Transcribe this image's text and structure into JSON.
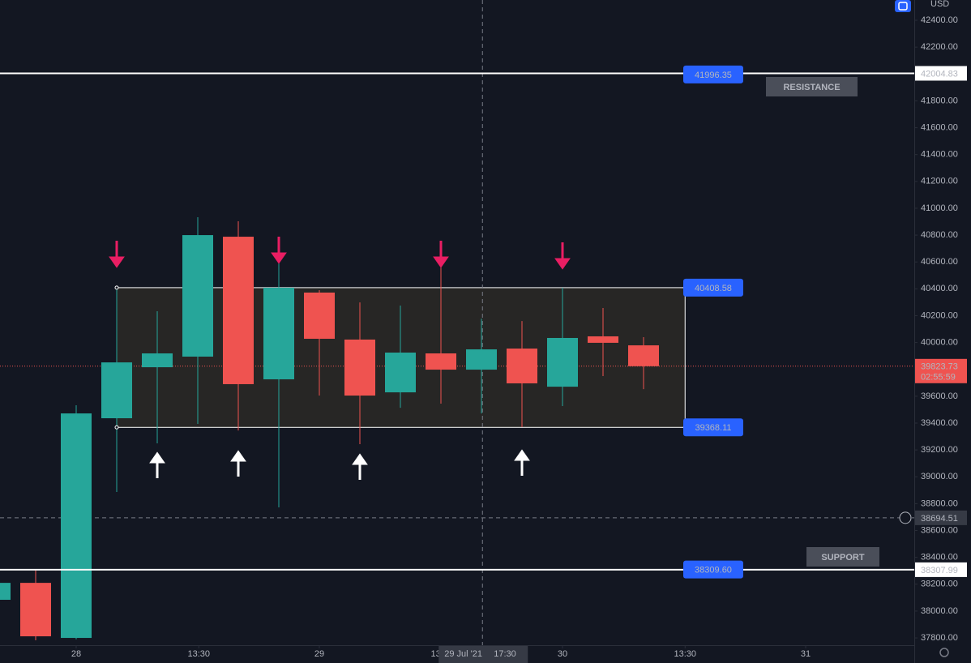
{
  "chart_data": {
    "type": "candlestick",
    "currency": "USD",
    "x": [
      -8,
      -4,
      0,
      4,
      8,
      12,
      16,
      20,
      24,
      28,
      32,
      36,
      40,
      44,
      48,
      52,
      56
    ],
    "open": [
      38084,
      38210,
      37800,
      39436,
      39816,
      39895,
      40788,
      39726,
      40372,
      40022,
      39629,
      39919,
      39798,
      39955,
      39671,
      40046,
      39979
    ],
    "high": [
      38230,
      38307,
      39533,
      40408,
      40233,
      40933,
      40903,
      40589,
      40390,
      40299,
      40275,
      40661,
      40178,
      40160,
      40408,
      40257,
      40040
    ],
    "low": [
      38060,
      37782,
      37790,
      38887,
      39249,
      39394,
      39345,
      38772,
      39605,
      39243,
      39514,
      39545,
      39472,
      39370,
      39527,
      39750,
      39653
    ],
    "close": [
      38210,
      37812,
      39472,
      39852,
      39919,
      40800,
      39690,
      40408,
      40028,
      39605,
      39925,
      39798,
      39949,
      39696,
      40034,
      39998,
      39823.73
    ],
    "up_color": "#26a69a",
    "down_color": "#ef5350",
    "xlim": [
      -7.52,
      82.72
    ],
    "xticks": [
      {
        "value": 0,
        "label": "28"
      },
      {
        "value": 12.1,
        "label": "13:30"
      },
      {
        "value": 24,
        "label": "29"
      },
      {
        "value": 36.1,
        "label": "13:30"
      },
      {
        "value": 48,
        "label": "30"
      },
      {
        "value": 60.1,
        "label": "13:30"
      },
      {
        "value": 72,
        "label": "31"
      }
    ],
    "ylim": [
      37746,
      42551
    ],
    "yticks": [
      {
        "value": 42400,
        "label": "42400.00"
      },
      {
        "value": 42200,
        "label": "42200.00"
      },
      {
        "value": 41800,
        "label": "41800.00"
      },
      {
        "value": 41600,
        "label": "41600.00"
      },
      {
        "value": 41400,
        "label": "41400.00"
      },
      {
        "value": 41200,
        "label": "41200.00"
      },
      {
        "value": 41000,
        "label": "41000.00"
      },
      {
        "value": 40800,
        "label": "40800.00"
      },
      {
        "value": 40600,
        "label": "40600.00"
      },
      {
        "value": 40400,
        "label": "40400.00"
      },
      {
        "value": 40200,
        "label": "40200.00"
      },
      {
        "value": 40000,
        "label": "40000.00"
      },
      {
        "value": 39600,
        "label": "39600.00"
      },
      {
        "value": 39400,
        "label": "39400.00"
      },
      {
        "value": 39200,
        "label": "39200.00"
      },
      {
        "value": 39000,
        "label": "39000.00"
      },
      {
        "value": 38800,
        "label": "38800.00"
      },
      {
        "value": 38600,
        "label": "38600.00"
      },
      {
        "value": 38400,
        "label": "38400.00"
      },
      {
        "value": 38200,
        "label": "38200.00"
      },
      {
        "value": 38000,
        "label": "38000.00"
      },
      {
        "value": 37800,
        "label": "37800.00"
      }
    ],
    "levels": [
      {
        "name": "RESISTANCE",
        "value": 42004.83,
        "tag": 41996.35
      },
      {
        "name": "SUPPORT",
        "value": 38307.99,
        "tag": {
          "value": 38309.6,
          "label": "38309.60"
        }
      }
    ],
    "range_box": {
      "top": 40408.58,
      "bottom": 39368.11,
      "x_start": 4,
      "x_end": 60.1
    },
    "last_price": 39823.73,
    "countdown": "02:55:59",
    "crosshair": {
      "x": 40.1,
      "price": 38694.51,
      "date": "29 Jul '21",
      "time": "17:30"
    }
  }
}
